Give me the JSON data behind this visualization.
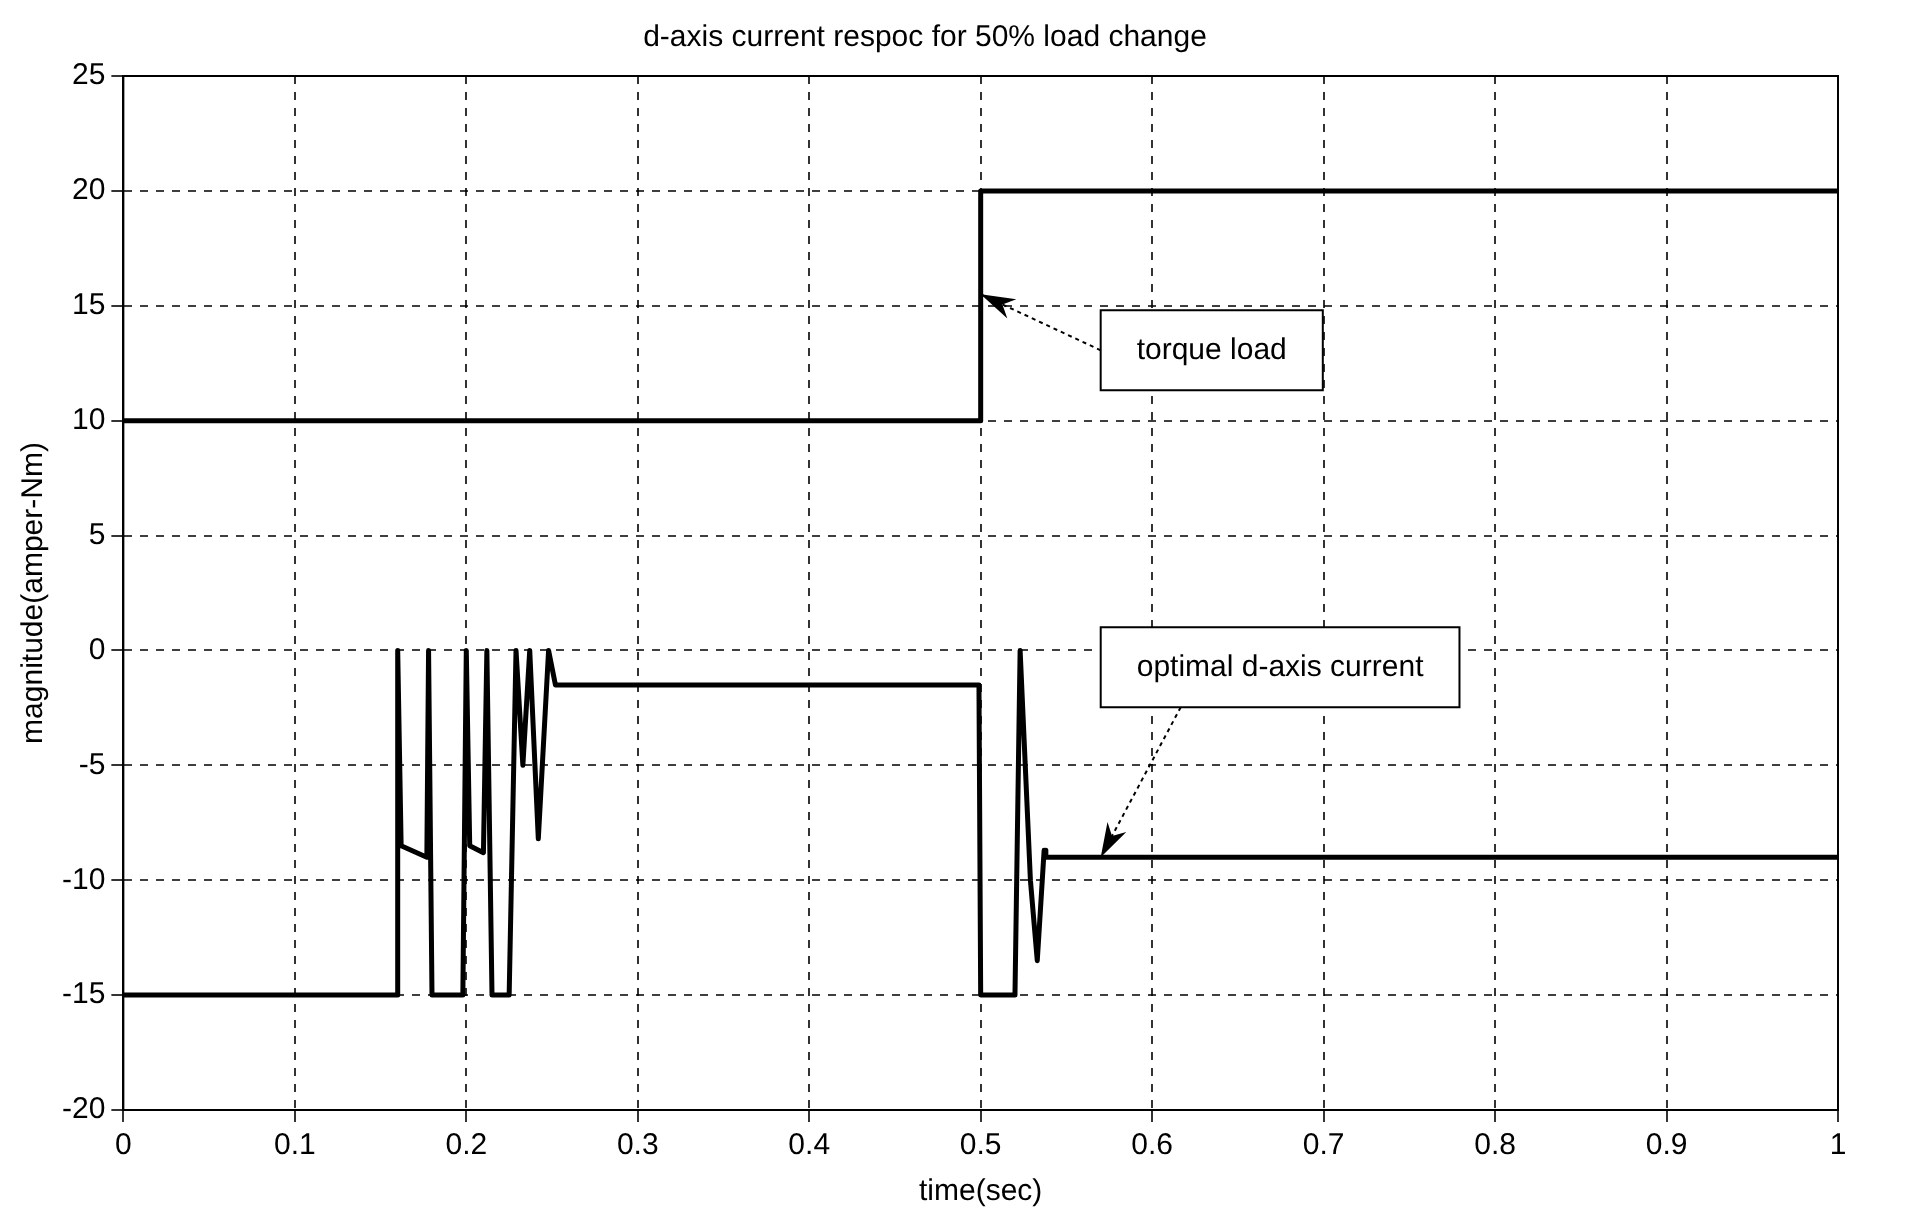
{
  "chart_data": {
    "type": "line",
    "title": "d-axis current respoc for 50% load change",
    "xlabel": "time(sec)",
    "ylabel": "magnitude(amper-Nm)",
    "xlim": [
      0,
      1
    ],
    "ylim": [
      -20,
      25
    ],
    "xticks": [
      0,
      0.1,
      0.2,
      0.3,
      0.4,
      0.5,
      0.6,
      0.7,
      0.8,
      0.9,
      1
    ],
    "yticks": [
      -20,
      -15,
      -10,
      -5,
      0,
      5,
      10,
      15,
      20,
      25
    ],
    "grid": true,
    "marker": "none",
    "line_style": "solid",
    "series": [
      {
        "color": "#000000",
        "x": [
          0,
          0.5,
          0.5,
          1
        ],
        "values": [
          10,
          10,
          20,
          20
        ]
      },
      {
        "color": "#000000",
        "x": [
          0,
          0.16,
          0.16,
          0.162,
          0.177,
          0.178,
          0.18,
          0.198,
          0.2,
          0.202,
          0.21,
          0.212,
          0.215,
          0.225,
          0.229,
          0.233,
          0.237,
          0.242,
          0.248,
          0.252,
          0.499,
          0.5,
          0.52,
          0.523,
          0.529,
          0.533,
          0.537,
          0.538,
          1
        ],
        "values": [
          -15,
          -15,
          0,
          -8.5,
          -9,
          0,
          -15,
          -15,
          0,
          -8.5,
          -8.8,
          0,
          -15,
          -15,
          0,
          -5,
          0,
          -8.2,
          0,
          -1.5,
          -1.5,
          -15,
          -15,
          0,
          -10,
          -13.5,
          -8.7,
          -9,
          -9
        ]
      }
    ],
    "annotations": [
      {
        "text": "torque load",
        "x": 0.5,
        "y": 15.5
      },
      {
        "text": "optimal d-axis current",
        "x": 0.57,
        "y": -9
      }
    ]
  }
}
